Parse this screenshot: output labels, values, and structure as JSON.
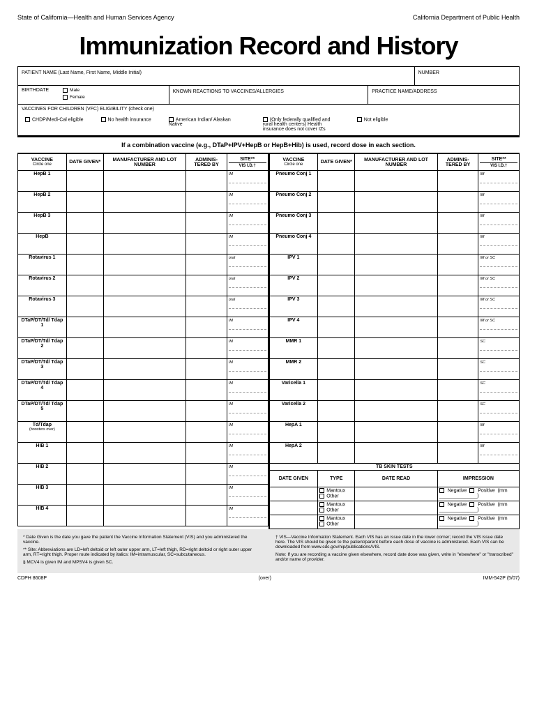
{
  "header": {
    "left": "State of California—Health and Human Services Agency",
    "right": "California Department of Public Health"
  },
  "title": "Immunization Record and History",
  "patient": {
    "name_label": "PATIENT NAME (Last Name, First Name, Middle Initial)",
    "number_label": "NUMBER",
    "birthdate_label": "BIRTHDATE",
    "male": "Male",
    "female": "Female",
    "reactions_label": "KNOWN REACTIONS TO VACCINES/ALLERGIES",
    "practice_label": "PRACTICE NAME/ADDRESS",
    "vfc_label": "VACCINES FOR CHILDREN (VFC) ELIGIBILITY (check one)",
    "vfc_opts": [
      "CHDP/Medi-Cal eligible",
      "No health insurance",
      "American Indian/ Alaskan Native",
      "(Only federally qualified and rural health centers) Health insurance does not cover IZs",
      "Not eligible"
    ]
  },
  "combo_note": "If a combination vaccine (e.g., DTaP+IPV+HepB or HepB+Hib) is used, record dose in each section.",
  "col_headers": {
    "vaccine": "VACCINE",
    "vaccine_sub": "Circle one",
    "date": "DATE GIVEN*",
    "mln": "MANUFACTURER AND LOT NUMBER",
    "admin": "ADMINIS- TERED BY",
    "site": "SITE**",
    "vis": "VIS I.D.†"
  },
  "left_vax": [
    {
      "n": "HepB 1",
      "s": "IM"
    },
    {
      "n": "HepB 2",
      "s": "IM"
    },
    {
      "n": "HepB 3",
      "s": "IM"
    },
    {
      "n": "HepB",
      "s": "IM"
    },
    {
      "n": "Rotavirus 1",
      "s": "oral"
    },
    {
      "n": "Rotavirus 2",
      "s": "oral"
    },
    {
      "n": "Rotavirus 3",
      "s": "oral"
    },
    {
      "n": "DTaP/DT/Td/ Tdap 1",
      "s": "IM"
    },
    {
      "n": "DTaP/DT/Td/ Tdap 2",
      "s": "IM"
    },
    {
      "n": "DTaP/DT/Td/ Tdap 3",
      "s": "IM"
    },
    {
      "n": "DTaP/DT/Td/ Tdap 4",
      "s": "IM"
    },
    {
      "n": "DTaP/DT/Td/ Tdap 5",
      "s": "IM"
    },
    {
      "n": "Td/Tdap",
      "sub": "(boosters over)",
      "s": "IM"
    },
    {
      "n": "HIB 1",
      "s": "IM"
    },
    {
      "n": "HIB 2",
      "s": "IM"
    },
    {
      "n": "HIB 3",
      "s": "IM"
    },
    {
      "n": "HIB 4",
      "s": "IM"
    }
  ],
  "right_vax": [
    {
      "n": "Pneumo Conj 1",
      "s": "IM"
    },
    {
      "n": "Pneumo Conj 2",
      "s": "IM"
    },
    {
      "n": "Pneumo Conj 3",
      "s": "IM"
    },
    {
      "n": "Pneumo Conj 4",
      "s": "IM"
    },
    {
      "n": "IPV 1",
      "s": "IM or SC"
    },
    {
      "n": "IPV 2",
      "s": "IM or SC"
    },
    {
      "n": "IPV 3",
      "s": "IM or SC"
    },
    {
      "n": "IPV 4",
      "s": "IM or SC"
    },
    {
      "n": "MMR 1",
      "s": "SC"
    },
    {
      "n": "MMR 2",
      "s": "SC"
    },
    {
      "n": "Varicella 1",
      "s": "SC"
    },
    {
      "n": "Varicella 2",
      "s": "SC"
    },
    {
      "n": "HepA 1",
      "s": "IM"
    },
    {
      "n": "HepA 2",
      "s": "IM"
    }
  ],
  "tb": {
    "title": "TB SKIN TESTS",
    "headers": [
      "DATE GIVEN",
      "TYPE",
      "DATE READ",
      "IMPRESSION"
    ],
    "type_opts": [
      "Mantoux",
      "Other"
    ],
    "imp_opts": [
      "Negative",
      "Positive"
    ],
    "mm": "(mm",
    "rows": 3
  },
  "footnotes": {
    "date_given": "* Date Given is the date you gave the patient the Vaccine Information Statement (VIS) and you administered the vaccine.",
    "site": "** Site: Abbreviations are LD=left deltoid or left outer upper arm, LT=left thigh, RD=right deltoid or right outer upper arm, RT=right thigh. Proper route indicated by italics: IM=intramuscular, SC=subcutaneous.",
    "mcv": "§ MCV4 is given IM and MPSV4 is given SC.",
    "vis": "† VIS—Vaccine Information Statement. Each VIS has an issue date in the lower corner; record the VIS issue date here. The VIS should be given to the patient/parent before each dose of vaccine is administered. Each VIS can be downloaded from www.cdc.gov/nip/publications/VIS.",
    "note": "Note: If you are recording a vaccine given elsewhere, record date dose was given, write in \"elsewhere\" or \"transcribed\" and/or name of provider."
  },
  "footer": {
    "left": "CDPH 8608P",
    "center": "(over)",
    "right": "IMM-542P (5/07)"
  }
}
